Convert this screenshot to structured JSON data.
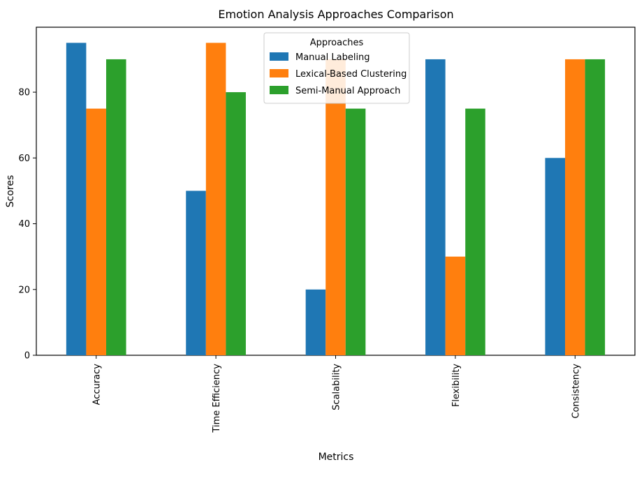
{
  "chart_data": {
    "type": "bar",
    "title": "Emotion Analysis Approaches Comparison",
    "xlabel": "Metrics",
    "ylabel": "Scores",
    "categories": [
      "Accuracy",
      "Time Efficiency",
      "Scalability",
      "Flexibility",
      "Consistency"
    ],
    "series": [
      {
        "name": "Manual Labeling",
        "color": "#1f77b4",
        "values": [
          95,
          50,
          20,
          90,
          60
        ]
      },
      {
        "name": "Lexical-Based Clustering",
        "color": "#ff7f0e",
        "values": [
          75,
          95,
          90,
          30,
          90
        ]
      },
      {
        "name": "Semi-Manual Approach",
        "color": "#2ca02c",
        "values": [
          90,
          80,
          75,
          75,
          90
        ]
      }
    ],
    "ylim": [
      0,
      99.75
    ],
    "yticks": [
      0,
      20,
      40,
      60,
      80
    ],
    "grid": false,
    "legend": {
      "title": "Approaches",
      "placement": "top-center"
    }
  }
}
